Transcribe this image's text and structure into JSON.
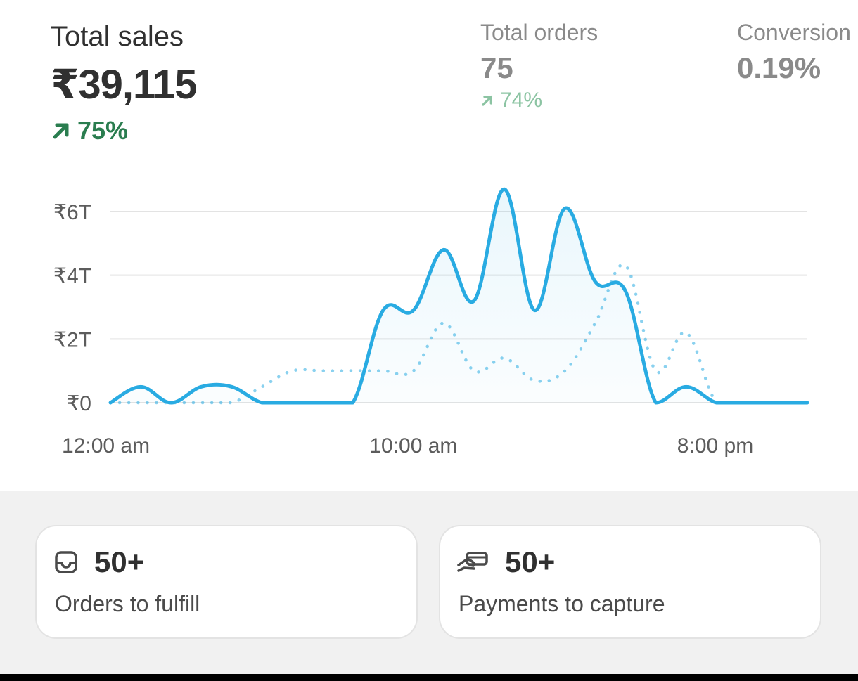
{
  "metrics": {
    "total_sales": {
      "label": "Total sales",
      "value": "₹39,115",
      "change": "75%",
      "trend": "up"
    },
    "total_orders": {
      "label": "Total orders",
      "value": "75",
      "change": "74%",
      "trend": "up"
    },
    "conversion": {
      "label": "Conversion",
      "value": "0.19%"
    }
  },
  "colors": {
    "primary_series": "#29abe2",
    "positive": "#2a7d4f",
    "positive_dim": "#8cc4a3",
    "grid": "#e3e3e3"
  },
  "chart_data": {
    "type": "line",
    "y_tick_labels": [
      "₹0",
      "₹2T",
      "₹4T",
      "₹6T"
    ],
    "y_ticks": [
      0,
      2,
      4,
      6
    ],
    "ylim": [
      0,
      6
    ],
    "x_tick_labels": [
      "12:00 am",
      "10:00 am",
      "8:00 pm"
    ],
    "x_tick_hours": [
      0,
      10,
      20
    ],
    "xlim": [
      0,
      23
    ],
    "grid": true,
    "series": [
      {
        "style": "solid",
        "x": [
          0,
          1,
          2,
          3,
          4,
          5,
          6,
          7,
          8,
          9,
          10,
          11,
          12,
          13,
          14,
          15,
          16,
          17,
          18,
          19,
          20,
          21,
          22,
          23
        ],
        "values": [
          0,
          0.5,
          0,
          0.5,
          0.5,
          0,
          0,
          0,
          0,
          2.9,
          2.9,
          4.8,
          3.2,
          6.7,
          2.9,
          6.1,
          3.8,
          3.5,
          0,
          0.5,
          0,
          0,
          0,
          0
        ]
      },
      {
        "style": "dotted",
        "x": [
          0,
          1,
          2,
          3,
          4,
          5,
          6,
          7,
          8,
          9,
          10,
          11,
          12,
          13,
          14,
          15,
          16,
          17,
          18,
          19,
          20,
          21,
          22,
          23
        ],
        "values": [
          0,
          0,
          0,
          0,
          0,
          0.5,
          1,
          1,
          1,
          1,
          1,
          2.5,
          1,
          1.4,
          0.7,
          1,
          2.5,
          4.3,
          1,
          2.2,
          0,
          0,
          0,
          0
        ]
      }
    ]
  },
  "cards": [
    {
      "icon": "inbox-icon",
      "count": "50+",
      "label": "Orders to fulfill"
    },
    {
      "icon": "hand-card-icon",
      "count": "50+",
      "label": "Payments to capture"
    }
  ]
}
